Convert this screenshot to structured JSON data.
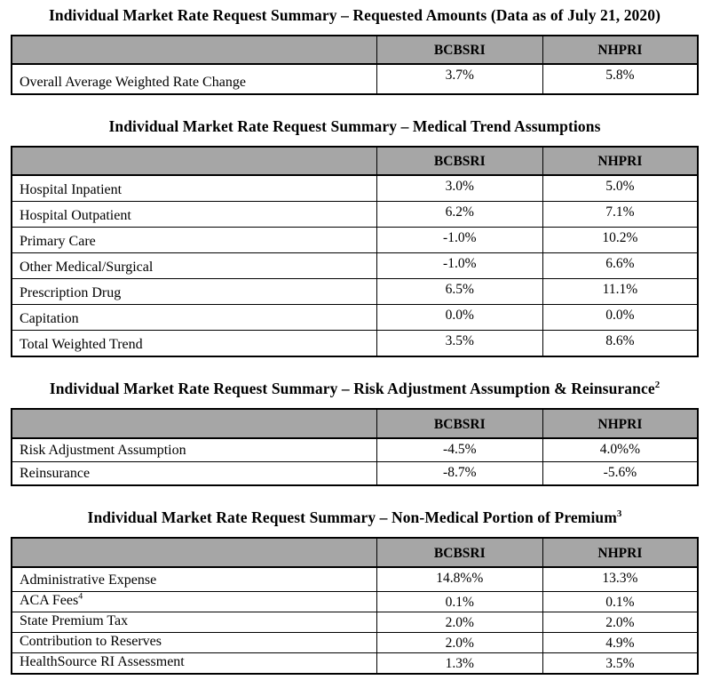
{
  "columns": {
    "company1": "BCBSRI",
    "company2": "NHPRI"
  },
  "colors": {
    "header_bg": "#a6a6a6",
    "border": "#000000",
    "text": "#000000",
    "page_bg": "#ffffff"
  },
  "tables": [
    {
      "title": "Individual Market Rate Request Summary – Requested Amounts (Data as of July 21, 2020)",
      "title_sup": "",
      "rows": [
        {
          "label": "Overall Average Weighted Rate Change",
          "label_sup": "",
          "bcbsri": "3.7%",
          "nhpri": "5.8%"
        }
      ]
    },
    {
      "title": "Individual Market Rate Request Summary – Medical Trend Assumptions",
      "title_sup": "",
      "rows": [
        {
          "label": "Hospital Inpatient",
          "label_sup": "",
          "bcbsri": "3.0%",
          "nhpri": "5.0%"
        },
        {
          "label": "Hospital Outpatient",
          "label_sup": "",
          "bcbsri": "6.2%",
          "nhpri": "7.1%"
        },
        {
          "label": "Primary Care",
          "label_sup": "",
          "bcbsri": "-1.0%",
          "nhpri": "10.2%"
        },
        {
          "label": "Other Medical/Surgical",
          "label_sup": "",
          "bcbsri": "-1.0%",
          "nhpri": "6.6%"
        },
        {
          "label": "Prescription Drug",
          "label_sup": "",
          "bcbsri": "6.5%",
          "nhpri": "11.1%"
        },
        {
          "label": "Capitation",
          "label_sup": "",
          "bcbsri": "0.0%",
          "nhpri": "0.0%"
        },
        {
          "label": "Total Weighted Trend",
          "label_sup": "",
          "bcbsri": "3.5%",
          "nhpri": "8.6%"
        }
      ]
    },
    {
      "title": "Individual Market Rate Request Summary – Risk Adjustment Assumption & Reinsurance",
      "title_sup": "2",
      "rows": [
        {
          "label": "Risk Adjustment Assumption",
          "label_sup": "",
          "bcbsri": "-4.5%",
          "nhpri": "4.0%%"
        },
        {
          "label": "Reinsurance",
          "label_sup": "",
          "bcbsri": "-8.7%",
          "nhpri": "-5.6%"
        }
      ]
    },
    {
      "title": "Individual Market Rate Request Summary – Non-Medical Portion of Premium",
      "title_sup": "3",
      "rows": [
        {
          "label": "Administrative Expense",
          "label_sup": "",
          "bcbsri": "14.8%%",
          "nhpri": "13.3%"
        },
        {
          "label": "ACA Fees",
          "label_sup": "4",
          "bcbsri": "0.1%",
          "nhpri": "0.1%"
        },
        {
          "label": "State Premium Tax",
          "label_sup": "",
          "bcbsri": "2.0%",
          "nhpri": "2.0%"
        },
        {
          "label": "Contribution to Reserves",
          "label_sup": "",
          "bcbsri": "2.0%",
          "nhpri": "4.9%"
        },
        {
          "label": "HealthSource RI Assessment",
          "label_sup": "",
          "bcbsri": "1.3%",
          "nhpri": "3.5%"
        }
      ]
    }
  ]
}
